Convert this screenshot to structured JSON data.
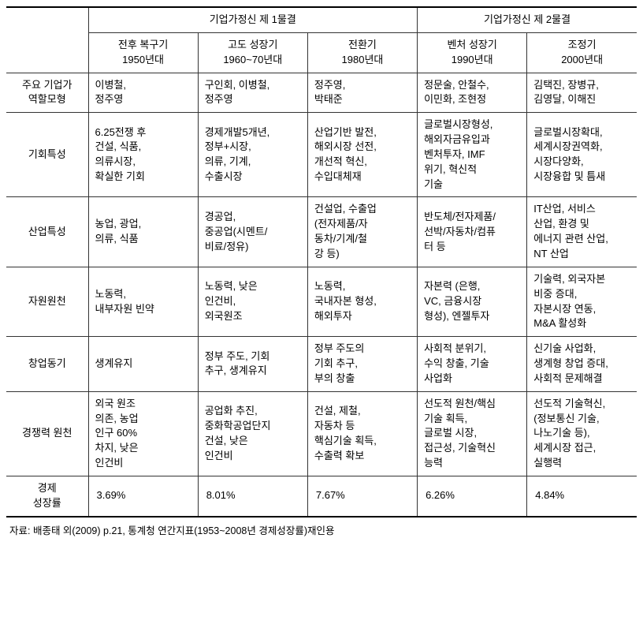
{
  "header": {
    "wave1": "기업가정신 제 1물결",
    "wave2": "기업가정신 제 2물결",
    "periods": {
      "p1": "전후 복구기\n1950년대",
      "p2": "고도 성장기\n1960~70년대",
      "p3": "전환기\n1980년대",
      "p4": "벤처 성장기\n1990년대",
      "p5": "조정기\n2000년대"
    }
  },
  "rows": {
    "rolemodel": {
      "label": "주요 기업가\n역할모형",
      "c1": "이병철,\n정주영",
      "c2": "구인회, 이병철,\n정주영",
      "c3": "정주영,\n박태준",
      "c4": "정문술, 안철수,\n이민화, 조현정",
      "c5": "김택진, 장병규,\n김영달, 이해진"
    },
    "opportunity": {
      "label": "기회특성",
      "c1": "6.25전쟁 후\n건설, 식품,\n의류시장,\n확실한 기회",
      "c2": "경제개발5개년,\n정부+시장,\n의류, 기계,\n수출시장",
      "c3": "산업기반 발전,\n해외시장 선전,\n개선적 혁신,\n수입대체재",
      "c4": "글로벌시장형성,\n해외자금유입과\n벤처투자, IMF\n위기, 혁신적\n기술",
      "c5": "글로벌시장확대,\n세계시장권역화,\n시장다양화,\n시장융합 및 틈새"
    },
    "industry": {
      "label": "산업특성",
      "c1": "농업, 광업,\n의류, 식품",
      "c2": "경공업,\n중공업(시멘트/\n비료/정유)",
      "c3": "건설업, 수출업\n(전자제품/자\n동차/기계/철\n강 등)",
      "c4": "반도체/전자제품/\n선박/자동차/컴퓨\n터 등",
      "c5": "IT산업, 서비스\n산업, 환경 및\n에너지 관련 산업,\nNT 산업"
    },
    "resource": {
      "label": "자원원천",
      "c1": "노동력,\n내부자원 빈약",
      "c2": "노동력, 낮은\n인건비,\n외국원조",
      "c3": "노동력,\n국내자본 형성,\n해외투자",
      "c4": "자본력 (은행,\nVC, 금융시장\n형성), 엔젤투자",
      "c5": "기술력, 외국자본\n비중 증대,\n자본시장 연동,\nM&A 활성화"
    },
    "motive": {
      "label": "창업동기",
      "c1": "생계유지",
      "c2": "정부 주도, 기회\n추구, 생계유지",
      "c3": "정부 주도의\n기회 추구,\n부의 창출",
      "c4": "사회적 분위기,\n수익 창출, 기술\n사업화",
      "c5": "신기술 사업화,\n생계형 창업 증대,\n사회적 문제해결"
    },
    "competitive": {
      "label": "경쟁력 원천",
      "c1": "외국 원조\n의존, 농업\n인구 60%\n차지, 낮은\n인건비",
      "c2": "공업화 추진,\n중화학공업단지\n건설, 낮은\n인건비",
      "c3": "건설, 제철,\n자동차 등\n핵심기술 획득,\n수출력 확보",
      "c4": "선도적 원천/핵심\n기술 획득,\n글로벌 시장,\n접근성, 기술혁신\n능력",
      "c5": "선도적 기술혁신,\n(정보통신 기술,\n나노기술 등),\n세계시장 접근,\n실행력"
    },
    "growth": {
      "label": "경제\n성장률",
      "c1": "3.69%",
      "c2": "8.01%",
      "c3": "7.67%",
      "c4": "6.26%",
      "c5": "4.84%"
    }
  },
  "source": "자료: 배종태 외(2009) p.21, 통계청 연간지표(1953~2008년 경제성장률)재인용"
}
